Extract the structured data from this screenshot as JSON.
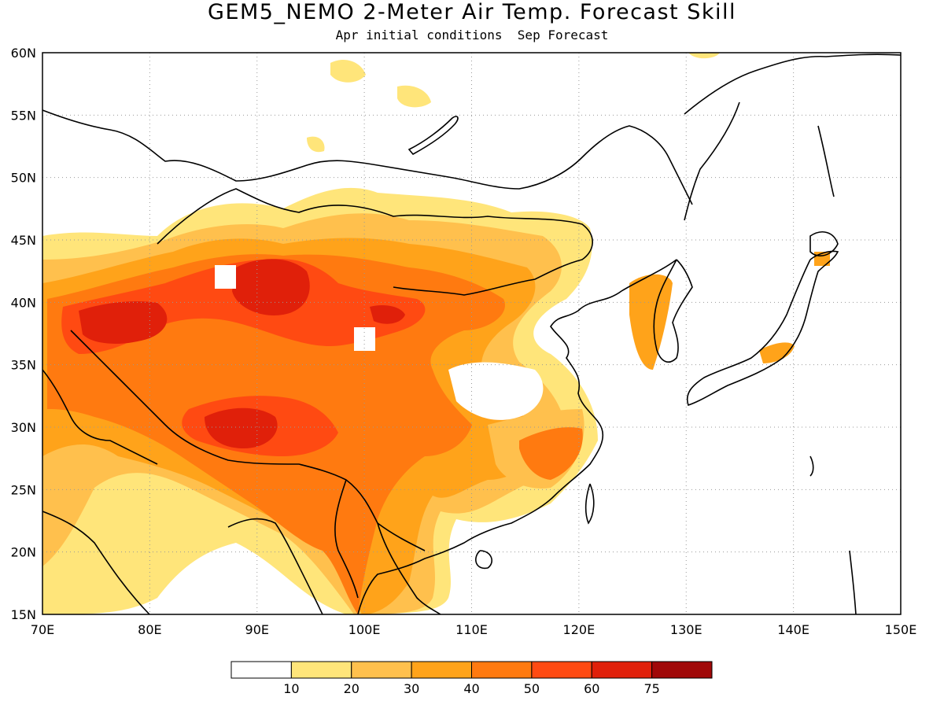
{
  "header": {
    "title": "GEM5_NEMO 2-Meter Air Temp. Forecast Skill",
    "subtitle": "Apr initial conditions  Sep Forecast"
  },
  "map": {
    "lon_range": [
      70,
      150
    ],
    "lat_range": [
      15,
      60
    ],
    "lon_ticks": [
      "70E",
      "80E",
      "90E",
      "100E",
      "110E",
      "120E",
      "130E",
      "140E",
      "150E"
    ],
    "lat_ticks": [
      "15N",
      "20N",
      "25N",
      "30N",
      "35N",
      "40N",
      "45N",
      "50N",
      "55N",
      "60N"
    ],
    "grid": "dotted"
  },
  "colorbar": {
    "colors": [
      "#ffffff",
      "#ffe57a",
      "#ffc04d",
      "#ffa31a",
      "#ff7a10",
      "#ff4a12",
      "#e0200a",
      "#a00808"
    ],
    "labels": [
      "10",
      "20",
      "30",
      "40",
      "50",
      "60",
      "75"
    ]
  }
}
